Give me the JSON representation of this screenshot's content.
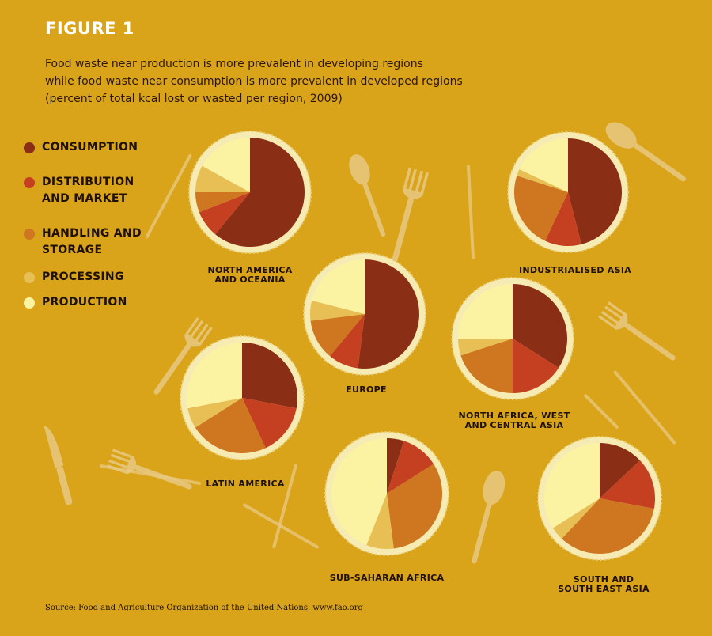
{
  "figure_label": "FIGURE 1",
  "subtitle_lines": [
    "Food waste near production is more prevalent in developing regions",
    "while food waste near consumption is more prevalent in developed regions",
    "(percent of total kcal lost or wasted per region, 2009)"
  ],
  "source": "Source: Food and Agriculture Organization of the United Nations, www.fao.org",
  "colors": {
    "background": "#D9A41A",
    "consumption": "#8A2E16",
    "distribution": "#C54020",
    "handling": "#CE7620",
    "processing": "#E7BF55",
    "production": "#FBF3A2",
    "rim": "#F6EBB2",
    "decoration": "#E8C983"
  },
  "decoration_icons": [
    "fork-icon",
    "spoon-icon",
    "knife-icon"
  ],
  "legend": [
    {
      "key": "consumption",
      "label": "CONSUMPTION"
    },
    {
      "key": "distribution",
      "label": "DISTRIBUTION\nAND MARKET"
    },
    {
      "key": "handling",
      "label": "HANDLING AND\nSTORAGE"
    },
    {
      "key": "processing",
      "label": "PROCESSING"
    },
    {
      "key": "production",
      "label": "PRODUCTION"
    }
  ],
  "chart_data": {
    "type": "pie",
    "unit": "percent of total kcal lost or wasted per region, 2009",
    "categories": [
      "CONSUMPTION",
      "DISTRIBUTION AND MARKET",
      "HANDLING AND STORAGE",
      "PROCESSING",
      "PRODUCTION"
    ],
    "regions": [
      {
        "name": "NORTH AMERICA\nAND OCEANIA",
        "values": [
          61,
          8,
          6,
          8,
          17
        ]
      },
      {
        "name": "INDUSTRIALISED ASIA",
        "values": [
          46,
          11,
          23,
          2,
          18
        ]
      },
      {
        "name": "EUROPE",
        "values": [
          52,
          9,
          12,
          6,
          21
        ]
      },
      {
        "name": "NORTH AFRICA, WEST\nAND CENTRAL ASIA",
        "values": [
          34,
          16,
          20,
          5,
          25
        ]
      },
      {
        "name": "LATIN AMERICA",
        "values": [
          28,
          15,
          23,
          6,
          28
        ]
      },
      {
        "name": "SUB-SAHARAN AFRICA",
        "values": [
          5,
          11,
          32,
          8,
          44
        ]
      },
      {
        "name": "SOUTH AND\nSOUTH EAST ASIA",
        "values": [
          13,
          15,
          34,
          4,
          34
        ]
      }
    ]
  }
}
